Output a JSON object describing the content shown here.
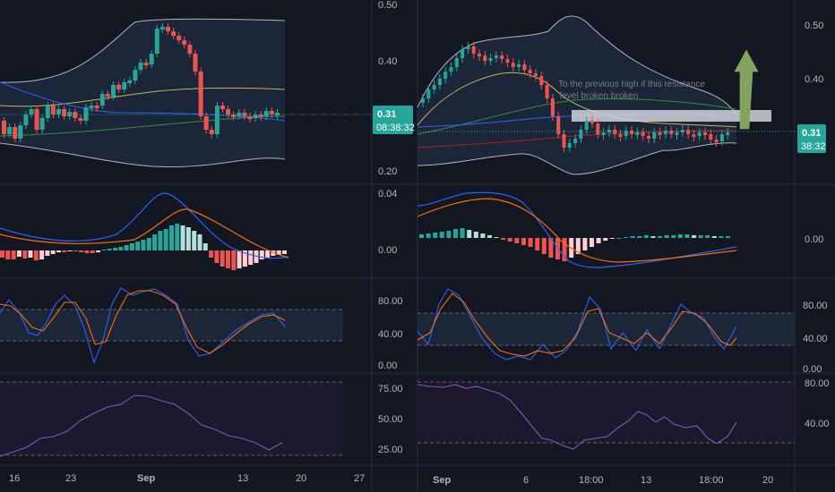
{
  "colors": {
    "background": "#131722",
    "up": "#26a69a",
    "down": "#ef5350",
    "band_line": "#b2b5be",
    "price_line": "#26a69a",
    "macd": "#2962ff",
    "signal": "#ff6d00",
    "stoch_k": "#2962ff",
    "stoch_d": "#ff6d00",
    "rsi": "#7e57c2",
    "sma_yellow": "#c9b458",
    "sma_green": "#388e3c",
    "sma_blue": "#2962ff",
    "sma_red": "#b71c1c",
    "arrow": "#81a35c",
    "separator": "#2a2e39"
  },
  "left_chart": {
    "price_axis": [
      "0.50",
      "0.40",
      "0.20"
    ],
    "price_badge": {
      "value": "0.31",
      "countdown": "08:38:32"
    },
    "macd_axis": [
      "0.04",
      "0.00"
    ],
    "stoch_axis": [
      "80.00",
      "40.00",
      "0.00"
    ],
    "rsi_axis": [
      "75.00",
      "50.00",
      "25.00"
    ],
    "time_axis": [
      "16",
      "23",
      "Sep",
      "13",
      "20",
      "27"
    ]
  },
  "right_chart": {
    "price_axis": [
      "0.50",
      "0.40"
    ],
    "price_badge": {
      "value": "0.31",
      "countdown": "38:32"
    },
    "macd_axis": [
      "0.00"
    ],
    "stoch_axis": [
      "80.00",
      "40.00",
      "0.00"
    ],
    "rsi_axis": [
      "80.00",
      "40.00"
    ],
    "time_axis": [
      "Sep",
      "6",
      "18:00",
      "13",
      "18:00",
      "20"
    ],
    "annotation": {
      "line1": "To the previous high if this resistance",
      "line2": "level broken broken"
    }
  }
}
